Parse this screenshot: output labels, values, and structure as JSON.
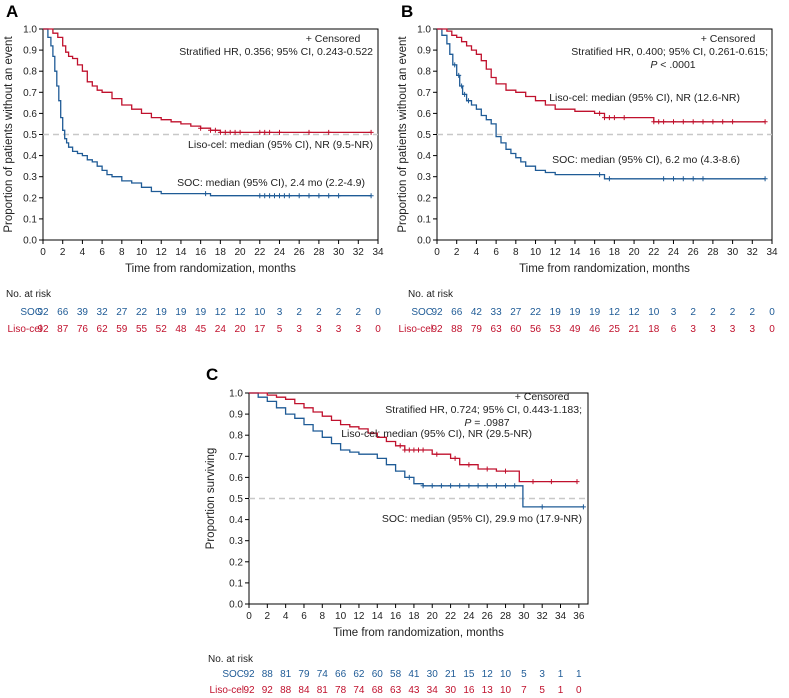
{
  "colors": {
    "soc": "#1f5b96",
    "liso": "#c0112d",
    "median_line": "#c8c8c8",
    "axis": "#000000"
  },
  "risk_table_header": "No. at risk",
  "chart_data": [
    {
      "type": "line",
      "panel": "A",
      "xlabel": "Time from randomization, months",
      "ylabel": "Proportion of patients without an event",
      "xlim": [
        0,
        34
      ],
      "ylim": [
        0,
        1
      ],
      "xticks": [
        "0",
        "2",
        "4",
        "6",
        "8",
        "10",
        "12",
        "14",
        "16",
        "18",
        "20",
        "22",
        "24",
        "26",
        "28",
        "30",
        "32",
        "34"
      ],
      "yticks": [
        "0.0",
        "0.1",
        "0.2",
        "0.3",
        "0.4",
        "0.5",
        "0.6",
        "0.7",
        "0.8",
        "0.9",
        "1.0"
      ],
      "median_ref": 0.5,
      "annotation_lines": [
        "+ Censored",
        "Stratified HR, 0.356; 95% CI, 0.243-0.522"
      ],
      "series": [
        {
          "name": "SOC",
          "key": "soc",
          "label": "SOC: median (95% CI), 2.4 mo (2.2-4.9)",
          "x": [
            0,
            0.5,
            0.8,
            1.0,
            1.2,
            1.4,
            1.6,
            1.8,
            2.0,
            2.2,
            2.4,
            2.6,
            3.0,
            3.5,
            4.0,
            4.5,
            5.0,
            5.5,
            6.0,
            6.5,
            7.0,
            8.0,
            9.0,
            10.0,
            11.0,
            12.0,
            14.0,
            16.0,
            17.0,
            33.3
          ],
          "y": [
            1.0,
            0.96,
            0.92,
            0.87,
            0.8,
            0.73,
            0.66,
            0.58,
            0.52,
            0.48,
            0.46,
            0.44,
            0.42,
            0.41,
            0.4,
            0.38,
            0.37,
            0.35,
            0.33,
            0.31,
            0.3,
            0.28,
            0.27,
            0.25,
            0.23,
            0.22,
            0.22,
            0.22,
            0.21,
            0.21
          ],
          "censored_x": [
            16.5,
            22.0,
            22.5,
            23.0,
            23.5,
            24.0,
            24.5,
            25.0,
            26.0,
            27.0,
            28.0,
            29.0,
            30.0,
            33.3
          ]
        },
        {
          "name": "Liso-cel",
          "key": "liso",
          "label": "Liso-cel: median (95% CI), NR (9.5-NR)",
          "x": [
            0,
            0.5,
            1.0,
            1.5,
            2.0,
            2.3,
            2.6,
            3.0,
            3.5,
            4.0,
            4.5,
            5.0,
            5.5,
            6.0,
            7.0,
            8.0,
            9.0,
            10.0,
            11.0,
            12.0,
            13.0,
            14.0,
            15.0,
            16.0,
            17.0,
            18.0,
            33.3
          ],
          "y": [
            1.0,
            1.0,
            0.98,
            0.96,
            0.92,
            0.89,
            0.87,
            0.86,
            0.83,
            0.8,
            0.75,
            0.73,
            0.71,
            0.7,
            0.67,
            0.64,
            0.62,
            0.6,
            0.58,
            0.57,
            0.56,
            0.55,
            0.54,
            0.53,
            0.52,
            0.51,
            0.51
          ],
          "censored_x": [
            16.0,
            17.0,
            17.5,
            18.0,
            18.5,
            19.0,
            19.5,
            20.0,
            22.0,
            22.5,
            23.0,
            24.0,
            27.0,
            29.0,
            33.3
          ]
        }
      ],
      "risk_times": [
        "0",
        "2",
        "4",
        "6",
        "8",
        "10",
        "12",
        "14",
        "16",
        "18",
        "20",
        "22",
        "24",
        "26",
        "28",
        "30",
        "32",
        "34"
      ],
      "risk": [
        {
          "name": "SOC",
          "key": "soc",
          "values": [
            "92",
            "66",
            "39",
            "32",
            "27",
            "22",
            "19",
            "19",
            "19",
            "12",
            "12",
            "10",
            "3",
            "2",
            "2",
            "2",
            "2",
            "0"
          ]
        },
        {
          "name": "Liso-cel",
          "key": "liso",
          "values": [
            "92",
            "87",
            "76",
            "62",
            "59",
            "55",
            "52",
            "48",
            "45",
            "24",
            "20",
            "17",
            "5",
            "3",
            "3",
            "3",
            "3",
            "0"
          ]
        }
      ]
    },
    {
      "type": "line",
      "panel": "B",
      "xlabel": "Time from randomization, months",
      "ylabel": "Proportion of patients without an event",
      "xlim": [
        0,
        34
      ],
      "ylim": [
        0,
        1
      ],
      "xticks": [
        "0",
        "2",
        "4",
        "6",
        "8",
        "10",
        "12",
        "14",
        "16",
        "18",
        "20",
        "22",
        "24",
        "26",
        "28",
        "30",
        "32",
        "34"
      ],
      "yticks": [
        "0.0",
        "0.1",
        "0.2",
        "0.3",
        "0.4",
        "0.5",
        "0.6",
        "0.7",
        "0.8",
        "0.9",
        "1.0"
      ],
      "median_ref": 0.5,
      "annotation_lines": [
        "+ Censored",
        "Stratified HR, 0.400; 95% CI, 0.261-0.615;",
        "P < .0001"
      ],
      "series": [
        {
          "name": "SOC",
          "key": "soc",
          "label": "SOC: median (95% CI), 6.2 mo (4.3-8.6)",
          "x": [
            0,
            0.5,
            1.0,
            1.3,
            1.6,
            2.0,
            2.3,
            2.6,
            3.0,
            3.5,
            4.0,
            4.5,
            5.0,
            5.5,
            6.0,
            6.5,
            7.0,
            7.5,
            8.0,
            8.5,
            9.0,
            10.0,
            11.0,
            12.0,
            17.0,
            33.3
          ],
          "y": [
            1.0,
            0.97,
            0.93,
            0.88,
            0.83,
            0.78,
            0.73,
            0.69,
            0.66,
            0.64,
            0.62,
            0.59,
            0.57,
            0.55,
            0.49,
            0.46,
            0.43,
            0.41,
            0.39,
            0.37,
            0.35,
            0.33,
            0.32,
            0.31,
            0.29,
            0.29
          ],
          "censored_x": [
            1.8,
            2.2,
            2.5,
            2.8,
            3.2,
            16.5,
            17.5,
            23.0,
            24.0,
            25.0,
            26.0,
            27.0,
            33.3
          ]
        },
        {
          "name": "Liso-cel",
          "key": "liso",
          "label": "Liso-cel: median (95% CI), NR (12.6-NR)",
          "x": [
            0,
            1.0,
            1.5,
            2.0,
            2.5,
            3.0,
            3.5,
            4.0,
            4.5,
            5.0,
            5.5,
            6.0,
            7.0,
            8.0,
            9.0,
            10.0,
            11.0,
            12.0,
            14.0,
            16.0,
            17.0,
            22.0,
            33.3
          ],
          "y": [
            1.0,
            0.99,
            0.97,
            0.96,
            0.94,
            0.92,
            0.9,
            0.88,
            0.85,
            0.81,
            0.77,
            0.74,
            0.71,
            0.7,
            0.68,
            0.66,
            0.64,
            0.62,
            0.61,
            0.6,
            0.58,
            0.56,
            0.56
          ],
          "censored_x": [
            16.5,
            17.0,
            17.5,
            18.0,
            19.0,
            22.0,
            22.5,
            23.0,
            24.0,
            25.0,
            26.0,
            27.0,
            28.0,
            29.0,
            30.0,
            33.3
          ]
        }
      ],
      "risk_times": [
        "0",
        "2",
        "4",
        "6",
        "8",
        "10",
        "12",
        "14",
        "16",
        "18",
        "20",
        "22",
        "24",
        "26",
        "28",
        "30",
        "32",
        "34"
      ],
      "risk": [
        {
          "name": "SOC",
          "key": "soc",
          "values": [
            "92",
            "66",
            "42",
            "33",
            "27",
            "22",
            "19",
            "19",
            "19",
            "12",
            "12",
            "10",
            "3",
            "2",
            "2",
            "2",
            "2",
            "0"
          ]
        },
        {
          "name": "Liso-cel",
          "key": "liso",
          "values": [
            "92",
            "88",
            "79",
            "63",
            "60",
            "56",
            "53",
            "49",
            "46",
            "25",
            "21",
            "18",
            "6",
            "3",
            "3",
            "3",
            "3",
            "0"
          ]
        }
      ]
    },
    {
      "type": "line",
      "panel": "C",
      "xlabel": "Time from randomization, months",
      "ylabel": "Proportion surviving",
      "xlim": [
        0,
        37
      ],
      "ylim": [
        0,
        1
      ],
      "xticks": [
        "0",
        "2",
        "4",
        "6",
        "8",
        "10",
        "12",
        "14",
        "16",
        "18",
        "20",
        "22",
        "24",
        "26",
        "28",
        "30",
        "32",
        "34",
        "36"
      ],
      "yticks": [
        "0.0",
        "0.1",
        "0.2",
        "0.3",
        "0.4",
        "0.5",
        "0.6",
        "0.7",
        "0.8",
        "0.9",
        "1.0"
      ],
      "median_ref": 0.5,
      "annotation_lines": [
        "+ Censored",
        "Stratified HR, 0.724; 95% CI, 0.443-1.183;",
        "P = .0987"
      ],
      "series": [
        {
          "name": "SOC",
          "key": "soc",
          "label": "SOC: median (95% CI), 29.9 mo (17.9-NR)",
          "x": [
            0,
            1.0,
            2.0,
            3.0,
            4.0,
            5.0,
            6.0,
            7.0,
            8.0,
            9.0,
            10.0,
            11.0,
            12.0,
            14.0,
            15.0,
            16.0,
            17.0,
            18.0,
            19.0,
            29.9,
            36.5
          ],
          "y": [
            1.0,
            0.98,
            0.96,
            0.93,
            0.9,
            0.88,
            0.85,
            0.82,
            0.79,
            0.76,
            0.73,
            0.72,
            0.71,
            0.69,
            0.66,
            0.63,
            0.6,
            0.57,
            0.56,
            0.46,
            0.46
          ],
          "censored_x": [
            17.5,
            19.0,
            20.0,
            21.0,
            22.0,
            23.0,
            24.0,
            25.0,
            26.0,
            27.0,
            28.0,
            29.0,
            32.0,
            36.5
          ]
        },
        {
          "name": "Liso-cel",
          "key": "liso",
          "label": "Liso-cel: median (95% CI), NR (29.5-NR)",
          "x": [
            0,
            2.0,
            3.0,
            4.0,
            5.0,
            6.0,
            7.0,
            8.0,
            9.0,
            10.0,
            11.0,
            12.0,
            13.0,
            14.0,
            15.0,
            16.0,
            17.0,
            18.0,
            20.0,
            22.0,
            23.0,
            25.0,
            27.0,
            29.5,
            35.8
          ],
          "y": [
            1.0,
            0.99,
            0.98,
            0.97,
            0.95,
            0.93,
            0.91,
            0.89,
            0.87,
            0.85,
            0.84,
            0.83,
            0.81,
            0.79,
            0.77,
            0.75,
            0.73,
            0.73,
            0.71,
            0.69,
            0.66,
            0.64,
            0.63,
            0.58,
            0.58
          ],
          "censored_x": [
            16.5,
            17.0,
            17.5,
            18.0,
            18.5,
            19.0,
            20.5,
            22.5,
            24.0,
            26.0,
            28.0,
            31.0,
            33.0,
            35.8
          ]
        }
      ],
      "risk_times": [
        "0",
        "2",
        "4",
        "6",
        "8",
        "10",
        "12",
        "14",
        "16",
        "18",
        "20",
        "22",
        "24",
        "26",
        "28",
        "30",
        "32",
        "34",
        "36"
      ],
      "risk": [
        {
          "name": "SOC",
          "key": "soc",
          "values": [
            "92",
            "88",
            "81",
            "79",
            "74",
            "66",
            "62",
            "60",
            "58",
            "41",
            "30",
            "21",
            "15",
            "12",
            "10",
            "5",
            "3",
            "1",
            "1"
          ]
        },
        {
          "name": "Liso-cel",
          "key": "liso",
          "values": [
            "92",
            "92",
            "88",
            "84",
            "81",
            "78",
            "74",
            "68",
            "63",
            "43",
            "34",
            "30",
            "16",
            "13",
            "10",
            "7",
            "5",
            "1",
            "0"
          ]
        }
      ]
    }
  ]
}
